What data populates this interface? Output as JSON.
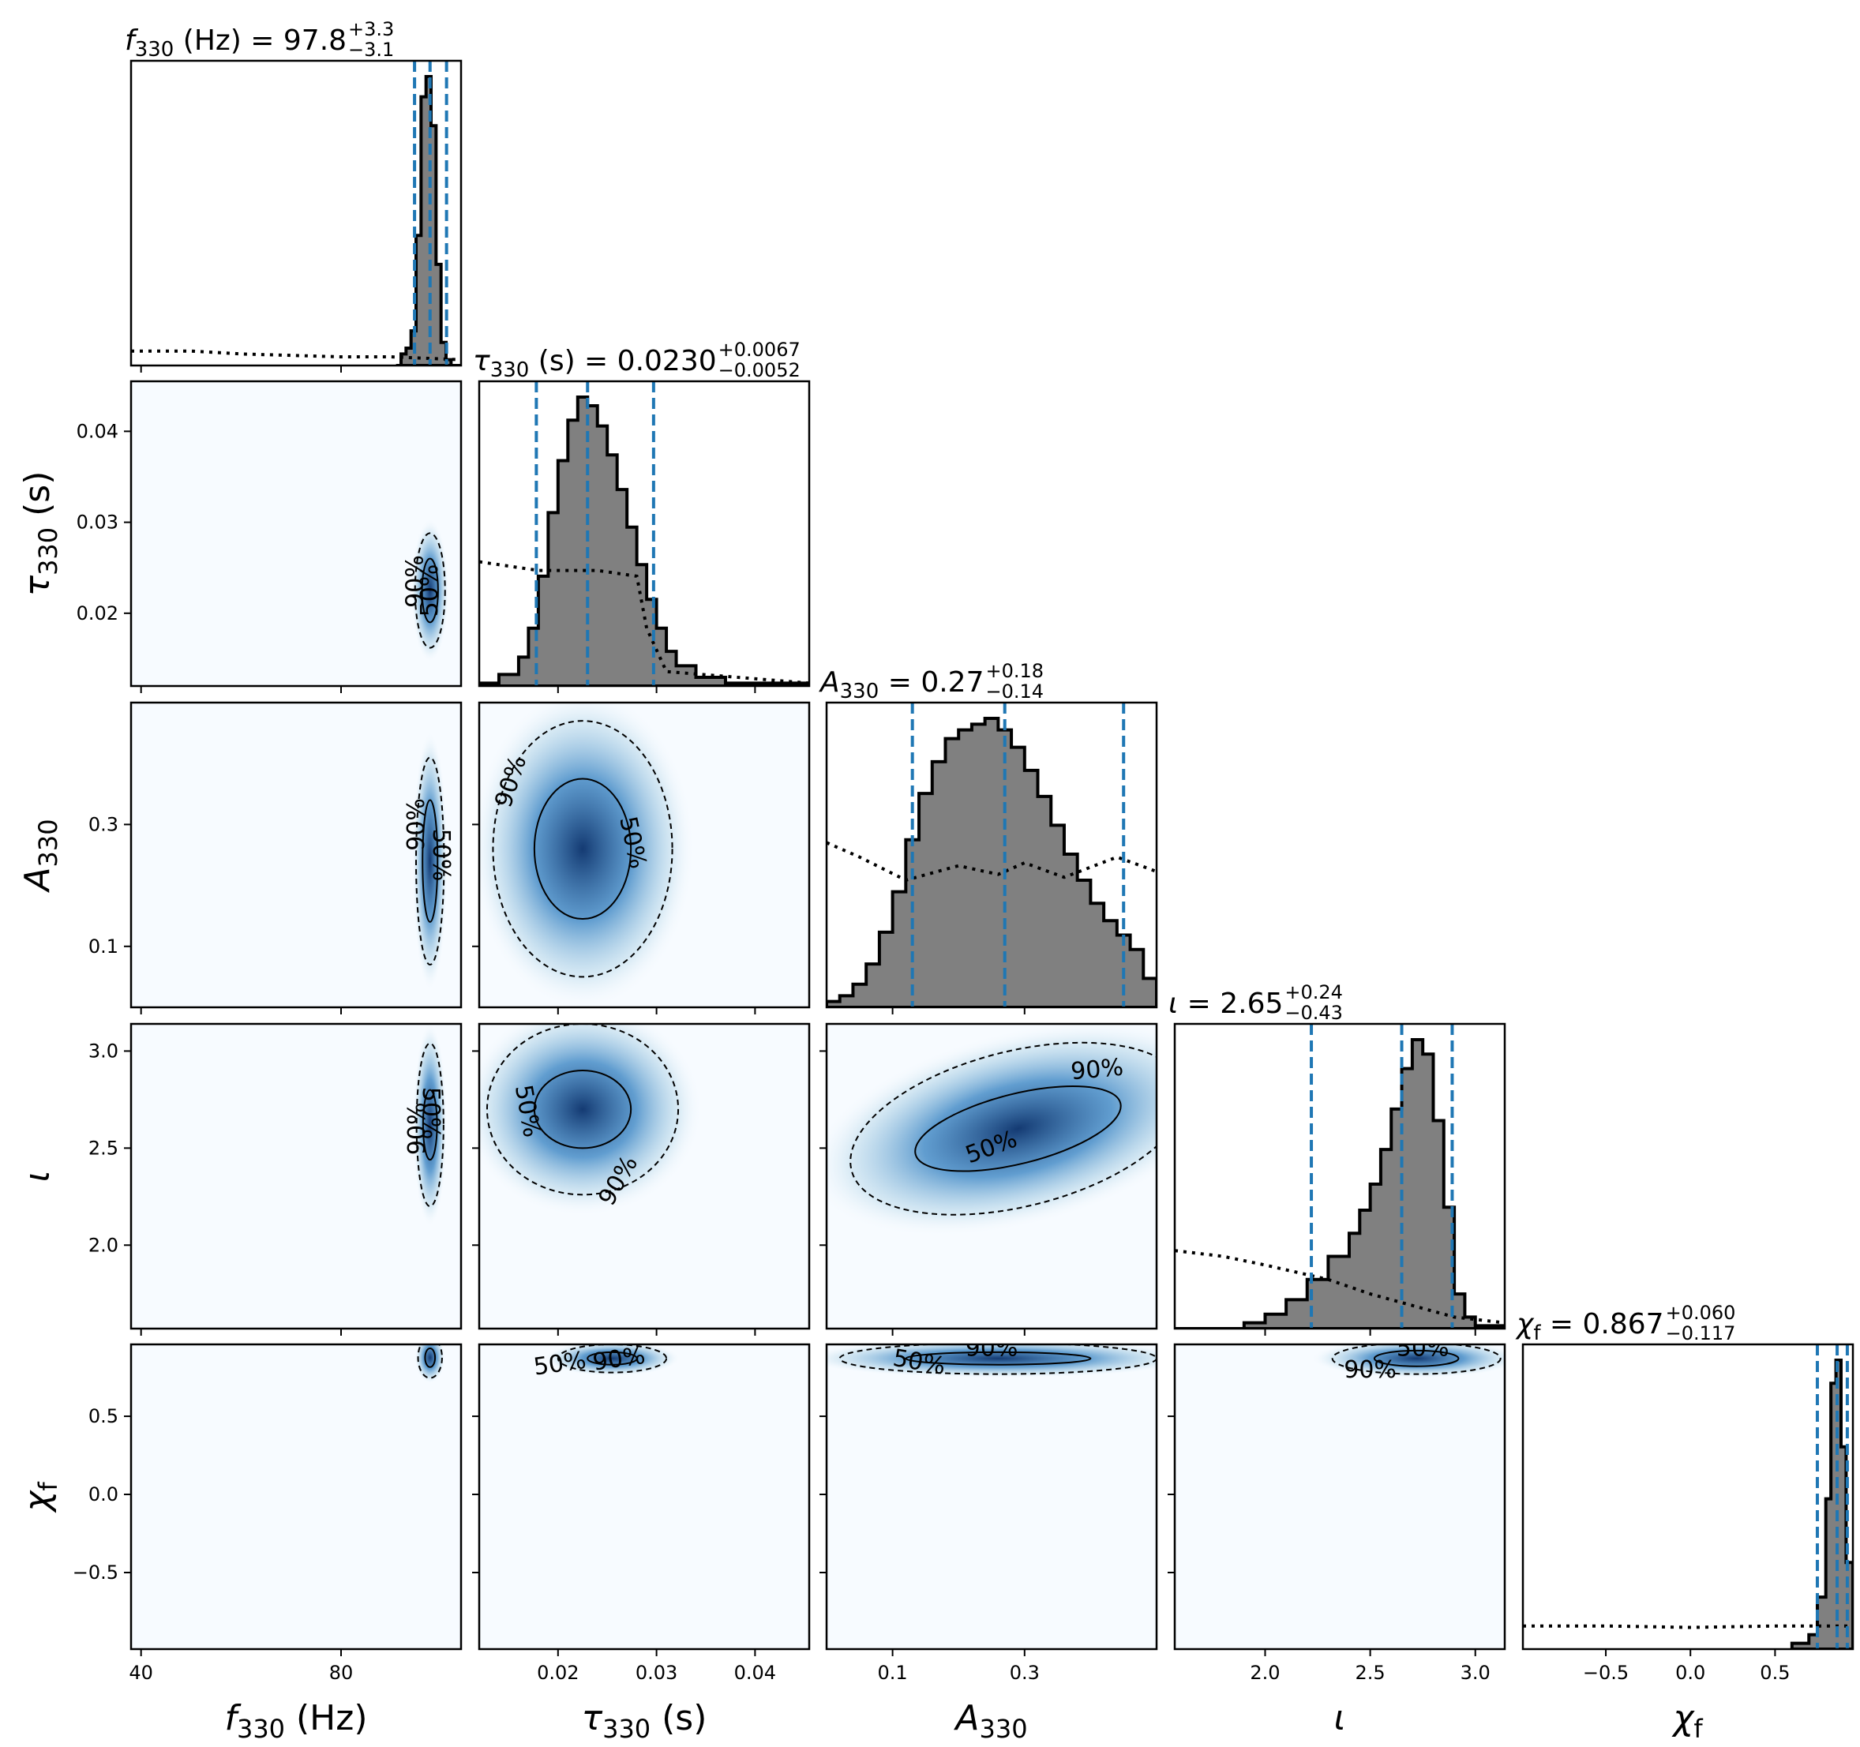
{
  "colors": {
    "hist_fill": "#808080",
    "hist_edge": "#000000",
    "quantile_line": "#1f77b4",
    "density_light": "#f7fbff",
    "density_dark": "#08306b",
    "prior_line": "#000000"
  },
  "chart_data": {
    "type": "corner",
    "contour_levels": [
      "50%",
      "90%"
    ],
    "parameters": [
      {
        "key": "f330",
        "axis_label": "f_330 (Hz)",
        "range": [
          38,
          104
        ],
        "ticks": [
          40,
          80
        ],
        "median": 97.8,
        "plus": 3.3,
        "minus": 3.1,
        "title": {
          "prefix": "f",
          "sub": "330",
          "unit": " (Hz) = ",
          "value": "97.8",
          "up": "+3.3",
          "down": "−3.1"
        }
      },
      {
        "key": "tau330",
        "axis_label": "τ_330 (s)",
        "range": [
          0.012,
          0.0455
        ],
        "ticks": [
          0.02,
          0.03,
          0.04
        ],
        "median": 0.023,
        "plus": 0.0067,
        "minus": 0.0052,
        "title": {
          "prefix": "τ",
          "sub": "330",
          "unit": " (s) = ",
          "value": "0.0230",
          "up": "+0.0067",
          "down": "−0.0052"
        }
      },
      {
        "key": "A330",
        "axis_label": "A_330",
        "range": [
          0.0,
          0.5
        ],
        "ticks": [
          0.1,
          0.3
        ],
        "median": 0.27,
        "plus": 0.18,
        "minus": 0.14,
        "title": {
          "prefix": "A",
          "sub": "330",
          "unit": " = ",
          "value": "0.27",
          "up": "+0.18",
          "down": "−0.14"
        }
      },
      {
        "key": "iota",
        "axis_label": "ι",
        "range": [
          1.57,
          3.14
        ],
        "ticks": [
          2.0,
          2.5,
          3.0
        ],
        "median": 2.65,
        "plus": 0.24,
        "minus": 0.43,
        "title": {
          "prefix": "ι",
          "sub": "",
          "unit": " = ",
          "value": "2.65",
          "up": "+0.24",
          "down": "−0.43"
        }
      },
      {
        "key": "chif",
        "axis_label": "χ_f",
        "range": [
          -0.99,
          0.96
        ],
        "ticks": [
          -0.5,
          0.0,
          0.5
        ],
        "median": 0.867,
        "plus": 0.06,
        "minus": 0.117,
        "title": {
          "prefix": "χ",
          "sub": "f",
          "unit": " = ",
          "value": "0.867",
          "up": "+0.060",
          "down": "−0.117"
        }
      }
    ],
    "tick_labels": {
      "f330": [
        "40",
        "80"
      ],
      "tau330": [
        "0.02",
        "0.03",
        "0.04"
      ],
      "A330": [
        "0.1",
        "0.3"
      ],
      "iota": [
        "2.0",
        "2.5",
        "3.0"
      ],
      "chif": [
        "−0.5",
        "0.0",
        "0.5"
      ]
    },
    "histograms": {
      "f330": {
        "bins": [
          91,
          92,
          93,
          94,
          95,
          96,
          97,
          98,
          99,
          100,
          101,
          102,
          103,
          104
        ],
        "counts": [
          0,
          0.04,
          0.06,
          0.12,
          0.45,
          0.93,
          1.0,
          0.83,
          0.35,
          0.08,
          0.02,
          0,
          0
        ]
      },
      "tau330": {
        "bins": [
          0.012,
          0.014,
          0.016,
          0.017,
          0.018,
          0.019,
          0.02,
          0.021,
          0.022,
          0.023,
          0.024,
          0.025,
          0.026,
          0.027,
          0.028,
          0.029,
          0.03,
          0.031,
          0.032,
          0.034,
          0.037,
          0.0455
        ],
        "counts": [
          0.01,
          0.04,
          0.1,
          0.2,
          0.38,
          0.6,
          0.78,
          0.92,
          1.0,
          0.97,
          0.9,
          0.8,
          0.68,
          0.55,
          0.42,
          0.3,
          0.2,
          0.12,
          0.07,
          0.03,
          0.01
        ]
      },
      "A330": {
        "bins": [
          0.0,
          0.02,
          0.04,
          0.06,
          0.08,
          0.1,
          0.12,
          0.14,
          0.16,
          0.18,
          0.2,
          0.22,
          0.24,
          0.26,
          0.28,
          0.3,
          0.32,
          0.34,
          0.36,
          0.38,
          0.4,
          0.42,
          0.44,
          0.46,
          0.48,
          0.5
        ],
        "counts": [
          0.02,
          0.04,
          0.08,
          0.15,
          0.26,
          0.4,
          0.58,
          0.74,
          0.85,
          0.93,
          0.96,
          0.98,
          1.0,
          0.96,
          0.9,
          0.82,
          0.73,
          0.63,
          0.53,
          0.44,
          0.36,
          0.3,
          0.25,
          0.2,
          0.1
        ]
      },
      "iota": {
        "bins": [
          1.57,
          1.9,
          2.0,
          2.1,
          2.2,
          2.3,
          2.4,
          2.45,
          2.5,
          2.55,
          2.6,
          2.65,
          2.7,
          2.75,
          2.8,
          2.85,
          2.9,
          2.95,
          3.0,
          3.14
        ],
        "counts": [
          0.0,
          0.02,
          0.05,
          0.1,
          0.17,
          0.25,
          0.33,
          0.41,
          0.5,
          0.62,
          0.76,
          0.9,
          1.0,
          0.95,
          0.72,
          0.42,
          0.12,
          0.04,
          0.01
        ]
      },
      "chif": {
        "bins": [
          0.6,
          0.7,
          0.75,
          0.8,
          0.83,
          0.86,
          0.89,
          0.92,
          0.96
        ],
        "counts": [
          0.02,
          0.05,
          0.18,
          0.52,
          0.92,
          1.0,
          0.7,
          0.3
        ]
      }
    },
    "priors": {
      "f330": [
        [
          38,
          0.05
        ],
        [
          50,
          0.05
        ],
        [
          60,
          0.04
        ],
        [
          70,
          0.035
        ],
        [
          80,
          0.03
        ],
        [
          90,
          0.03
        ],
        [
          104,
          0.02
        ]
      ],
      "tau330": [
        [
          0.012,
          0.43
        ],
        [
          0.018,
          0.4
        ],
        [
          0.024,
          0.4
        ],
        [
          0.028,
          0.38
        ],
        [
          0.029,
          0.2
        ],
        [
          0.031,
          0.05
        ],
        [
          0.0455,
          0.01
        ]
      ],
      "A330": [
        [
          0.0,
          0.57
        ],
        [
          0.05,
          0.52
        ],
        [
          0.12,
          0.44
        ],
        [
          0.2,
          0.49
        ],
        [
          0.26,
          0.46
        ],
        [
          0.3,
          0.5
        ],
        [
          0.36,
          0.45
        ],
        [
          0.44,
          0.52
        ],
        [
          0.5,
          0.47
        ]
      ],
      "iota": [
        [
          1.57,
          0.27
        ],
        [
          1.8,
          0.25
        ],
        [
          2.0,
          0.22
        ],
        [
          2.3,
          0.17
        ],
        [
          2.5,
          0.12
        ],
        [
          2.7,
          0.08
        ],
        [
          2.9,
          0.04
        ],
        [
          3.14,
          0.02
        ]
      ],
      "chif": [
        [
          -0.99,
          0.08
        ],
        [
          -0.5,
          0.08
        ],
        [
          0.0,
          0.075
        ],
        [
          0.5,
          0.08
        ],
        [
          0.96,
          0.08
        ]
      ]
    },
    "pair_contours": [
      {
        "x": "f330",
        "y": "tau330",
        "center": [
          97.8,
          0.0225
        ],
        "r50": [
          1.6,
          0.0035
        ],
        "r90": [
          3.0,
          0.0063
        ],
        "labels": [
          {
            "level": "90%",
            "at": [
              95.0,
              0.0235
            ],
            "angle": -90
          },
          {
            "level": "50%",
            "at": [
              97.9,
              0.0225
            ],
            "angle": -90
          }
        ]
      },
      {
        "x": "f330",
        "y": "A330",
        "center": [
          97.8,
          0.24
        ],
        "r50": [
          1.5,
          0.1
        ],
        "r90": [
          2.8,
          0.17
        ],
        "labels": [
          {
            "level": "90%",
            "at": [
              95.2,
              0.3
            ],
            "angle": -90
          },
          {
            "level": "50%",
            "at": [
              99.8,
              0.25
            ],
            "angle": 90
          }
        ]
      },
      {
        "x": "f330",
        "y": "iota",
        "center": [
          97.8,
          2.62
        ],
        "r50": [
          1.4,
          0.18
        ],
        "r90": [
          2.7,
          0.42
        ],
        "labels": [
          {
            "level": "90%",
            "at": [
              95.4,
              2.6
            ],
            "angle": -90
          },
          {
            "level": "50%",
            "at": [
              97.8,
              2.68
            ],
            "angle": 90
          }
        ]
      },
      {
        "x": "f330",
        "y": "chif",
        "center": [
          97.8,
          0.875
        ],
        "r50": [
          1.0,
          0.06
        ],
        "r90": [
          2.4,
          0.13
        ],
        "labels": []
      },
      {
        "x": "tau330",
        "y": "A330",
        "center": [
          0.0225,
          0.26
        ],
        "r50": [
          0.0049,
          0.115
        ],
        "r90": [
          0.0091,
          0.21
        ],
        "labels": [
          {
            "level": "90%",
            "at": [
              0.0153,
              0.37
            ],
            "angle": -72
          },
          {
            "level": "50%",
            "at": [
              0.0275,
              0.27
            ],
            "angle": 78
          }
        ]
      },
      {
        "x": "tau330",
        "y": "iota",
        "center": [
          0.0225,
          2.7
        ],
        "r50": [
          0.0049,
          0.2
        ],
        "r90": [
          0.0097,
          0.44
        ],
        "labels": [
          {
            "level": "50%",
            "at": [
              0.0168,
              2.69
            ],
            "angle": 80
          },
          {
            "level": "90%",
            "at": [
              0.0262,
              2.33
            ],
            "angle": -60
          }
        ]
      },
      {
        "x": "tau330",
        "y": "chif",
        "center": [
          0.0255,
          0.87
        ],
        "r50": [
          0.0025,
          0.04
        ],
        "r90": [
          0.0055,
          0.09
        ],
        "labels": [
          {
            "level": "50%",
            "at": [
              0.0202,
              0.83
            ],
            "angle": -8
          },
          {
            "level": "90%",
            "at": [
              0.0262,
              0.86
            ],
            "angle": -8
          }
        ]
      },
      {
        "x": "A330",
        "y": "iota",
        "center": [
          0.29,
          2.6
        ],
        "r50": [
          0.16,
          0.18
        ],
        "r90": [
          0.26,
          0.4
        ],
        "tilt": -14,
        "labels": [
          {
            "level": "90%",
            "at": [
              0.41,
              2.9
            ],
            "angle": -5
          },
          {
            "level": "50%",
            "at": [
              0.25,
              2.5
            ],
            "angle": -20
          }
        ]
      },
      {
        "x": "A330",
        "y": "chif",
        "center": [
          0.26,
          0.87
        ],
        "r50": [
          0.14,
          0.04
        ],
        "r90": [
          0.24,
          0.1
        ],
        "labels": [
          {
            "level": "50%",
            "at": [
              0.14,
              0.84
            ],
            "angle": 10
          },
          {
            "level": "90%",
            "at": [
              0.25,
              0.93
            ],
            "angle": 0
          }
        ]
      },
      {
        "x": "iota",
        "y": "chif",
        "center": [
          2.72,
          0.87
        ],
        "r50": [
          0.2,
          0.05
        ],
        "r90": [
          0.4,
          0.1
        ],
        "labels": [
          {
            "level": "50%",
            "at": [
              2.75,
              0.93
            ],
            "angle": 0
          },
          {
            "level": "90%",
            "at": [
              2.5,
              0.79
            ],
            "angle": 0
          }
        ]
      }
    ]
  }
}
